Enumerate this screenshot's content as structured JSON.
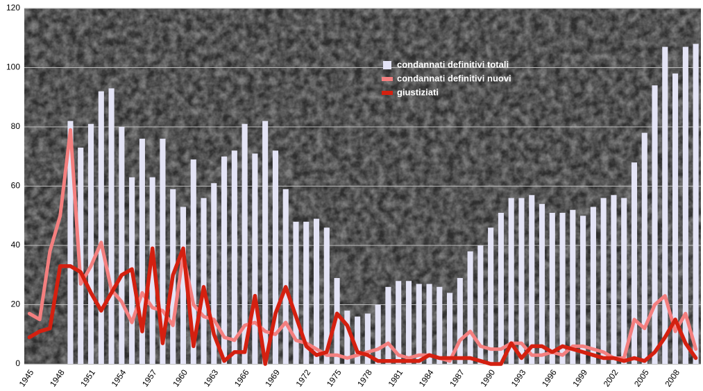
{
  "chart_data": {
    "type": "combo",
    "categories": [
      "1945",
      null,
      null,
      "1948",
      null,
      null,
      "1951",
      null,
      null,
      "1954",
      null,
      null,
      "1957",
      null,
      null,
      "1960",
      null,
      null,
      "1963",
      null,
      null,
      "1966",
      null,
      null,
      "1969",
      null,
      null,
      "1972",
      null,
      null,
      "1975",
      null,
      null,
      "1978",
      null,
      null,
      "1981",
      null,
      null,
      "1984",
      null,
      null,
      "1987",
      null,
      null,
      "1990",
      null,
      null,
      "1993",
      null,
      null,
      "1996",
      null,
      null,
      "1999",
      null,
      null,
      "2002",
      null,
      null,
      "2005",
      null,
      null,
      "2008",
      null,
      null
    ],
    "ylim": [
      0,
      120
    ],
    "yticks": [
      0,
      20,
      40,
      60,
      80,
      100,
      120
    ],
    "grid": true,
    "series": [
      {
        "name": "condannati definitivi totali",
        "type": "bar",
        "color": "#e4e4f6",
        "values": [
          null,
          null,
          null,
          null,
          82,
          73,
          81,
          92,
          93,
          80,
          63,
          76,
          63,
          76,
          59,
          53,
          69,
          56,
          61,
          70,
          72,
          81,
          71,
          82,
          72,
          59,
          48,
          48,
          49,
          46,
          29,
          18,
          16,
          17,
          20,
          26,
          28,
          28,
          27,
          27,
          26,
          24,
          29,
          38,
          40,
          46,
          51,
          56,
          56,
          57,
          54,
          51,
          51,
          52,
          50,
          53,
          56,
          57,
          56,
          68,
          78,
          94,
          107,
          98,
          107,
          108
        ]
      },
      {
        "name": "condannati definitivi nuovi",
        "type": "line",
        "color": "#f47f7f",
        "values": [
          17,
          15,
          38,
          50,
          79,
          27,
          33,
          41,
          25,
          21,
          14,
          24,
          19,
          18,
          13,
          37,
          20,
          16,
          15,
          9,
          8,
          13,
          14,
          11,
          10,
          14,
          8,
          7,
          5,
          3,
          3,
          2,
          3,
          4,
          5,
          7,
          3,
          2,
          3,
          3,
          2,
          1,
          8,
          11,
          6,
          5,
          5,
          7,
          7,
          3,
          3,
          4,
          3,
          6,
          6,
          5,
          4,
          2,
          2,
          15,
          12,
          20,
          23,
          11,
          17,
          5
        ]
      },
      {
        "name": "giustiziati",
        "type": "line",
        "color": "#d42010",
        "values": [
          9,
          11,
          12,
          33,
          33,
          31,
          24,
          18,
          24,
          30,
          32,
          11,
          39,
          7,
          30,
          39,
          6,
          26,
          10,
          1,
          4,
          4,
          23,
          0,
          17,
          26,
          16,
          6,
          3,
          4,
          17,
          13,
          4,
          3,
          1,
          1,
          1,
          1,
          1,
          3,
          2,
          2,
          2,
          2,
          1,
          0,
          0,
          7,
          2,
          6,
          6,
          4,
          6,
          5,
          4,
          3,
          2,
          2,
          1,
          2,
          1,
          4,
          9,
          15,
          7,
          2
        ]
      }
    ]
  }
}
